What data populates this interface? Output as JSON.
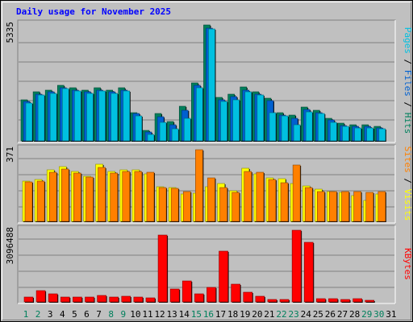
{
  "chart_data": {
    "type": "bar",
    "title": "Daily usage for November 2025",
    "x_label_colors": {
      "weekday": "#000000",
      "weekend": "#00805c"
    },
    "categories": [
      {
        "label": "1",
        "weekend": true
      },
      {
        "label": "2",
        "weekend": true
      },
      {
        "label": "3",
        "weekend": false
      },
      {
        "label": "4",
        "weekend": false
      },
      {
        "label": "5",
        "weekend": false
      },
      {
        "label": "6",
        "weekend": false
      },
      {
        "label": "7",
        "weekend": false
      },
      {
        "label": "8",
        "weekend": true
      },
      {
        "label": "9",
        "weekend": true
      },
      {
        "label": "10",
        "weekend": false
      },
      {
        "label": "11",
        "weekend": false
      },
      {
        "label": "12",
        "weekend": false
      },
      {
        "label": "13",
        "weekend": false
      },
      {
        "label": "14",
        "weekend": false
      },
      {
        "label": "15",
        "weekend": true
      },
      {
        "label": "16",
        "weekend": true
      },
      {
        "label": "17",
        "weekend": false
      },
      {
        "label": "18",
        "weekend": false
      },
      {
        "label": "19",
        "weekend": false
      },
      {
        "label": "20",
        "weekend": false
      },
      {
        "label": "21",
        "weekend": false
      },
      {
        "label": "22",
        "weekend": true
      },
      {
        "label": "23",
        "weekend": true
      },
      {
        "label": "24",
        "weekend": false
      },
      {
        "label": "25",
        "weekend": false
      },
      {
        "label": "26",
        "weekend": false
      },
      {
        "label": "27",
        "weekend": false
      },
      {
        "label": "28",
        "weekend": false
      },
      {
        "label": "29",
        "weekend": true
      },
      {
        "label": "30",
        "weekend": true
      },
      {
        "label": "31",
        "weekend": false
      }
    ],
    "panels": [
      {
        "max_label": "5335",
        "ymax": 5335,
        "legend": [
          {
            "text": "Pages",
            "color": "#00c0e0"
          },
          {
            "text": " / ",
            "color": "#000000"
          },
          {
            "text": "Files",
            "color": "#0060d0"
          },
          {
            "text": " / ",
            "color": "#000000"
          },
          {
            "text": "Hits",
            "color": "#00805c"
          }
        ],
        "series": [
          {
            "key": "hits",
            "color": "#00805c",
            "values": [
              1900,
              2250,
              2350,
              2550,
              2450,
              2350,
              2450,
              2350,
              2450,
              1300,
              500,
              1250,
              900,
              1600,
              2650,
              5335,
              2000,
              2150,
              2500,
              2250,
              1950,
              1300,
              1200,
              1550,
              1400,
              1050,
              800,
              750,
              750,
              650,
              null
            ]
          },
          {
            "key": "files",
            "color": "#0060d0",
            "values": [
              1800,
              2150,
              2250,
              2450,
              2350,
              2250,
              2350,
              2250,
              2350,
              1250,
              400,
              1100,
              750,
              1400,
              2550,
              5200,
              1900,
              2050,
              2350,
              2150,
              1850,
              1200,
              1050,
              1450,
              1300,
              950,
              700,
              650,
              650,
              600,
              null
            ]
          },
          {
            "key": "pages",
            "color": "#00c0e0",
            "values": [
              1750,
              2100,
              2200,
              2400,
              2300,
              2200,
              2300,
              2200,
              2300,
              1150,
              300,
              850,
              550,
              1050,
              2450,
              5150,
              1800,
              1900,
              2250,
              2100,
              1300,
              1150,
              750,
              1350,
              1250,
              850,
              650,
              600,
              600,
              550,
              null
            ]
          }
        ]
      },
      {
        "max_label": "371",
        "ymax": 371,
        "legend": [
          {
            "text": "Sites",
            "color": "#ff8000"
          },
          {
            "text": " / ",
            "color": "#000000"
          },
          {
            "text": "Visits",
            "color": "#ffff00"
          }
        ],
        "series": [
          {
            "key": "visits",
            "color": "#ffff00",
            "values": [
              210,
              215,
              265,
              285,
              260,
              235,
              295,
              260,
              265,
              265,
              245,
              180,
              175,
              140,
              145,
              180,
              195,
              160,
              275,
              245,
              225,
              220,
              195,
              185,
              165,
              155,
              150,
              135,
              110,
              140,
              null
            ]
          },
          {
            "key": "sites",
            "color": "#ff8000",
            "values": [
              205,
              210,
              255,
              270,
              250,
              230,
              280,
              250,
              260,
              260,
              255,
              175,
              170,
              155,
              371,
              225,
              175,
              150,
              260,
              255,
              215,
              200,
              290,
              175,
              155,
              155,
              155,
              155,
              150,
              155,
              null
            ]
          }
        ]
      },
      {
        "max_label": "3096488",
        "ymax": 3096488,
        "legend": [
          {
            "text": "KBytes",
            "color": "#ff0000"
          }
        ],
        "series": [
          {
            "key": "kbytes",
            "color": "#ff0000",
            "values": [
              220000,
              470000,
              360000,
              220000,
              200000,
              200000,
              270000,
              200000,
              230000,
              200000,
              180000,
              2890000,
              540000,
              900000,
              340000,
              630000,
              2190000,
              770000,
              410000,
              240000,
              110000,
              120000,
              3096488,
              2580000,
              140000,
              130000,
              100000,
              150000,
              50000,
              null,
              null
            ]
          }
        ]
      }
    ]
  }
}
